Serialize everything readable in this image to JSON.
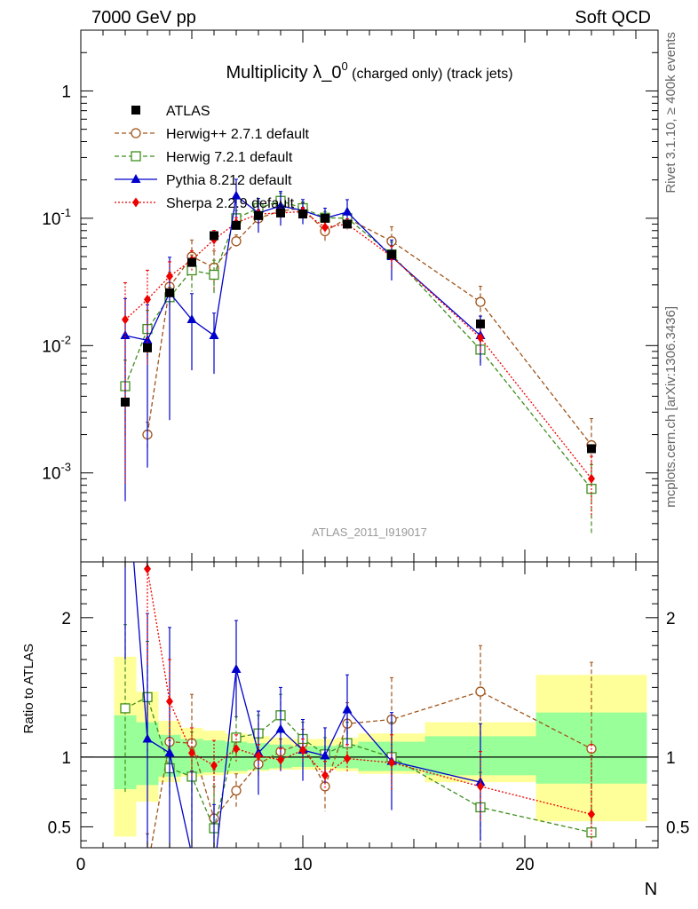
{
  "header": {
    "energy_label": "7000 GeV pp",
    "category_label": "Soft QCD"
  },
  "side_labels": {
    "rivet": "Rivet 3.1.10, ≥ 400k events",
    "source": "mcplots.cern.ch [arXiv:1306.3436]"
  },
  "chart_data": {
    "type": "line",
    "title_main": "Multiplicity λ_0",
    "title_sup": "0",
    "title_suffix": " (charged only) (track jets)",
    "analysis_id": "ATLAS_2011_I919017",
    "xlabel": "N",
    "ylabel_ratio": "Ratio to ATLAS",
    "xlim": [
      0,
      26
    ],
    "ylim_main": [
      0.0002,
      3
    ],
    "ylim_ratio": [
      0.35,
      2.4
    ],
    "x_ticks": [
      "0",
      "10",
      "20"
    ],
    "main_y_ticks": [
      "10^-3",
      "10^-2",
      "10^-1",
      "1"
    ],
    "ratio_y_ticks": [
      "0.5",
      "1",
      "2"
    ],
    "legend_position": "top-left",
    "data": {
      "name": "ATLAS",
      "color": "#000000",
      "x": [
        2,
        3,
        4,
        5,
        6,
        7,
        8,
        9,
        10,
        11,
        12,
        14,
        18,
        23
      ],
      "y": [
        0.0036,
        0.0096,
        0.026,
        0.045,
        0.073,
        0.088,
        0.105,
        0.11,
        0.108,
        0.1,
        0.09,
        0.052,
        0.0148,
        0.00155
      ]
    },
    "band": {
      "edges": [
        1.5,
        2.5,
        3.5,
        4.5,
        5.5,
        6.5,
        7.5,
        8.5,
        9.5,
        10.5,
        11.5,
        12.5,
        15.5,
        20.5,
        25.5
      ],
      "stat_lo": [
        0.77,
        0.8,
        0.86,
        0.88,
        0.89,
        0.9,
        0.91,
        0.92,
        0.93,
        0.93,
        0.92,
        0.9,
        0.87,
        0.81
      ],
      "stat_hi": [
        1.3,
        1.25,
        1.16,
        1.13,
        1.12,
        1.11,
        1.1,
        1.09,
        1.08,
        1.08,
        1.09,
        1.11,
        1.15,
        1.32
      ],
      "total_lo": [
        0.43,
        0.68,
        0.82,
        0.86,
        0.87,
        0.88,
        0.9,
        0.91,
        0.91,
        0.91,
        0.9,
        0.88,
        0.82,
        0.54
      ],
      "total_hi": [
        1.72,
        1.47,
        1.26,
        1.21,
        1.19,
        1.17,
        1.15,
        1.14,
        1.13,
        1.13,
        1.14,
        1.17,
        1.25,
        1.59
      ]
    },
    "series": [
      {
        "name": "Herwig++ 2.7.1 default",
        "color": "#a0541a",
        "dash": "5,3",
        "marker": "circle-open",
        "x": [
          3,
          4,
          5,
          6,
          7,
          8,
          9,
          10,
          11,
          12,
          14,
          18,
          23
        ],
        "y": [
          0.002,
          0.029,
          0.05,
          0.041,
          0.066,
          0.1,
          0.114,
          0.12,
          0.079,
          0.1,
          0.066,
          0.022,
          0.00165
        ],
        "ratio": [
          0.2,
          1.11,
          1.1,
          0.56,
          0.76,
          0.95,
          1.04,
          1.1,
          0.79,
          1.24,
          1.27,
          1.47,
          1.06
        ],
        "err": [
          0.25,
          0.3,
          0.35,
          0.35,
          0.12,
          0.1,
          0.09,
          0.1,
          0.18,
          0.15,
          0.3,
          0.33,
          0.62
        ]
      },
      {
        "name": "Herwig 7.2.1 default",
        "color": "#3e8e1c",
        "dash": "5,3",
        "marker": "square-open",
        "x": [
          2,
          3,
          4,
          5,
          6,
          7,
          8,
          9,
          10,
          11,
          12,
          14,
          18,
          23
        ],
        "y": [
          0.0048,
          0.0135,
          0.024,
          0.039,
          0.036,
          0.1,
          0.12,
          0.137,
          0.12,
          0.101,
          0.1,
          0.052,
          0.0093,
          0.00075
        ],
        "ratio": [
          1.35,
          1.43,
          0.92,
          0.86,
          0.49,
          1.14,
          1.17,
          1.3,
          1.13,
          1.02,
          1.1,
          1.0,
          0.64,
          0.46
        ],
        "err": [
          0.6,
          0.4,
          0.2,
          0.32,
          0.3,
          0.15,
          0.13,
          0.15,
          0.12,
          0.12,
          0.15,
          0.25,
          0.25,
          0.55
        ]
      },
      {
        "name": "Pythia 8.212 default",
        "color": "#0000cc",
        "dash": "",
        "marker": "triangle",
        "x": [
          2,
          3,
          4,
          5,
          6,
          7,
          8,
          9,
          10,
          11,
          12,
          14,
          18,
          23
        ],
        "y": [
          0.012,
          0.011,
          0.026,
          0.016,
          0.012,
          0.15,
          0.11,
          0.125,
          0.115,
          0.1,
          0.112,
          0.05,
          0.012,
          null
        ],
        "ratio": [
          3.2,
          1.13,
          1.03,
          0.3,
          0.16,
          1.63,
          1.03,
          1.2,
          1.05,
          1.01,
          1.34,
          0.97,
          0.82,
          null
        ],
        "err": [
          1.5,
          0.9,
          0.9,
          0.6,
          0.5,
          0.35,
          0.3,
          0.3,
          0.22,
          0.2,
          0.25,
          0.35,
          0.42,
          0
        ]
      },
      {
        "name": "Sherpa 2.2.9 default",
        "color": "#ee0000",
        "dash": "2,2",
        "marker": "diamond",
        "x": [
          2,
          3,
          4,
          5,
          6,
          7,
          8,
          9,
          10,
          11,
          12,
          14,
          18,
          23
        ],
        "y": [
          0.016,
          0.023,
          0.035,
          0.047,
          0.068,
          0.092,
          0.108,
          0.11,
          0.113,
          0.085,
          0.09,
          0.05,
          0.0115,
          0.0009
        ],
        "ratio": [
          4.4,
          2.35,
          1.4,
          1.03,
          0.94,
          1.06,
          1.01,
          0.98,
          1.05,
          0.87,
          0.99,
          0.96,
          0.79,
          0.59
        ],
        "err": [
          2.0,
          0.7,
          0.3,
          0.18,
          0.18,
          0.1,
          0.08,
          0.08,
          0.08,
          0.1,
          0.1,
          0.2,
          0.25,
          0.5
        ]
      }
    ]
  }
}
